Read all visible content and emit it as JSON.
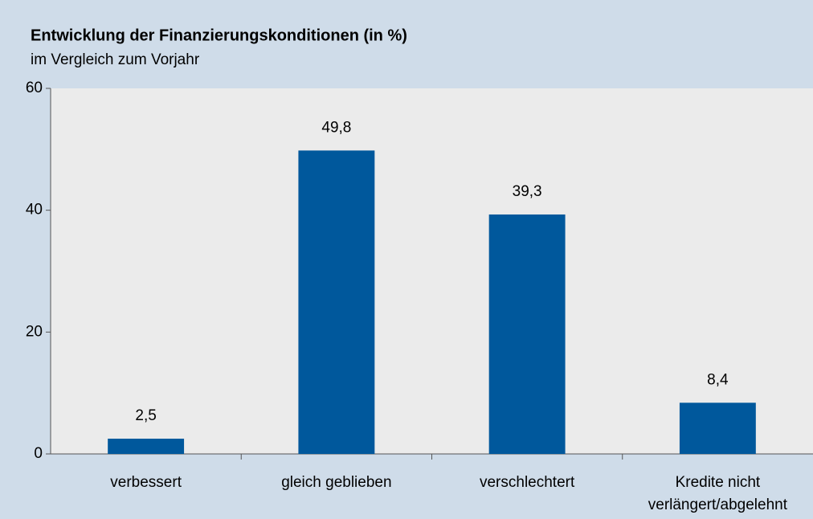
{
  "chart_data": {
    "type": "bar",
    "title": "Entwicklung der Finanzierungskonditionen (in %)",
    "subtitle": "im Vergleich zum Vorjahr",
    "categories": [
      "verbessert",
      "gleich geblieben",
      "verschlechtert",
      "Kredite nicht verlängert/abgelehnt"
    ],
    "values": [
      2.5,
      49.8,
      39.3,
      8.4
    ],
    "value_labels": [
      "2,5",
      "49,8",
      "39,3",
      "8,4"
    ],
    "color": "#00589c",
    "ylim": [
      0,
      60
    ],
    "yticks": [
      0,
      20,
      40,
      60
    ],
    "grid": false
  }
}
